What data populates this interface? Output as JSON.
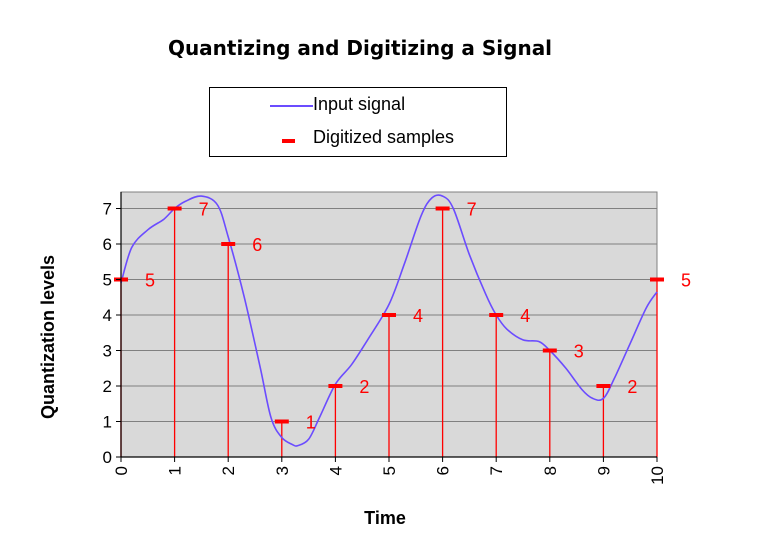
{
  "chart_data": {
    "type": "line",
    "title": "Quantizing and Digitizing a Signal",
    "xlabel": "Time",
    "ylabel": "Quantization levels",
    "xlim": [
      0,
      10
    ],
    "ylim": [
      0,
      7.5
    ],
    "x_ticks": [
      0,
      1,
      2,
      3,
      4,
      5,
      6,
      7,
      8,
      9,
      10
    ],
    "y_ticks": [
      0,
      1,
      2,
      3,
      4,
      5,
      6,
      7
    ],
    "grid": "horizontal",
    "legend": {
      "placement": "top",
      "entries": [
        {
          "name": "Input signal",
          "color": "#6b4cff"
        },
        {
          "name": "Digitized samples",
          "color": "#ff0000"
        }
      ]
    },
    "series": [
      {
        "name": "Input signal",
        "color": "#6b4cff",
        "x": [
          0,
          0.2,
          0.5,
          0.8,
          1.0,
          1.2,
          1.5,
          1.8,
          2.0,
          2.3,
          2.6,
          2.8,
          3.0,
          3.2,
          3.3,
          3.5,
          3.7,
          4.0,
          4.3,
          4.6,
          5.0,
          5.3,
          5.6,
          5.8,
          6.0,
          6.2,
          6.5,
          6.8,
          7.0,
          7.2,
          7.5,
          7.8,
          8.0,
          8.3,
          8.6,
          8.8,
          9.0,
          9.2,
          9.5,
          9.8,
          10.0
        ],
        "y": [
          4.9,
          5.9,
          6.4,
          6.7,
          7.0,
          7.2,
          7.35,
          7.1,
          6.2,
          4.5,
          2.5,
          1.1,
          0.55,
          0.35,
          0.32,
          0.5,
          1.1,
          2.05,
          2.6,
          3.3,
          4.3,
          5.5,
          6.8,
          7.3,
          7.35,
          7.0,
          5.7,
          4.6,
          4.0,
          3.6,
          3.3,
          3.25,
          3.0,
          2.5,
          1.9,
          1.65,
          1.65,
          2.2,
          3.2,
          4.2,
          4.65
        ]
      },
      {
        "name": "Digitized samples",
        "color": "#ff0000",
        "x": [
          0,
          1,
          2,
          3,
          4,
          5,
          6,
          7,
          8,
          9,
          10
        ],
        "y": [
          5,
          7,
          6,
          1,
          2,
          4,
          7,
          4,
          3,
          2,
          5
        ],
        "labels": [
          "5",
          "7",
          "6",
          "1",
          "2",
          "4",
          "7",
          "4",
          "3",
          "2",
          "5"
        ]
      }
    ]
  }
}
